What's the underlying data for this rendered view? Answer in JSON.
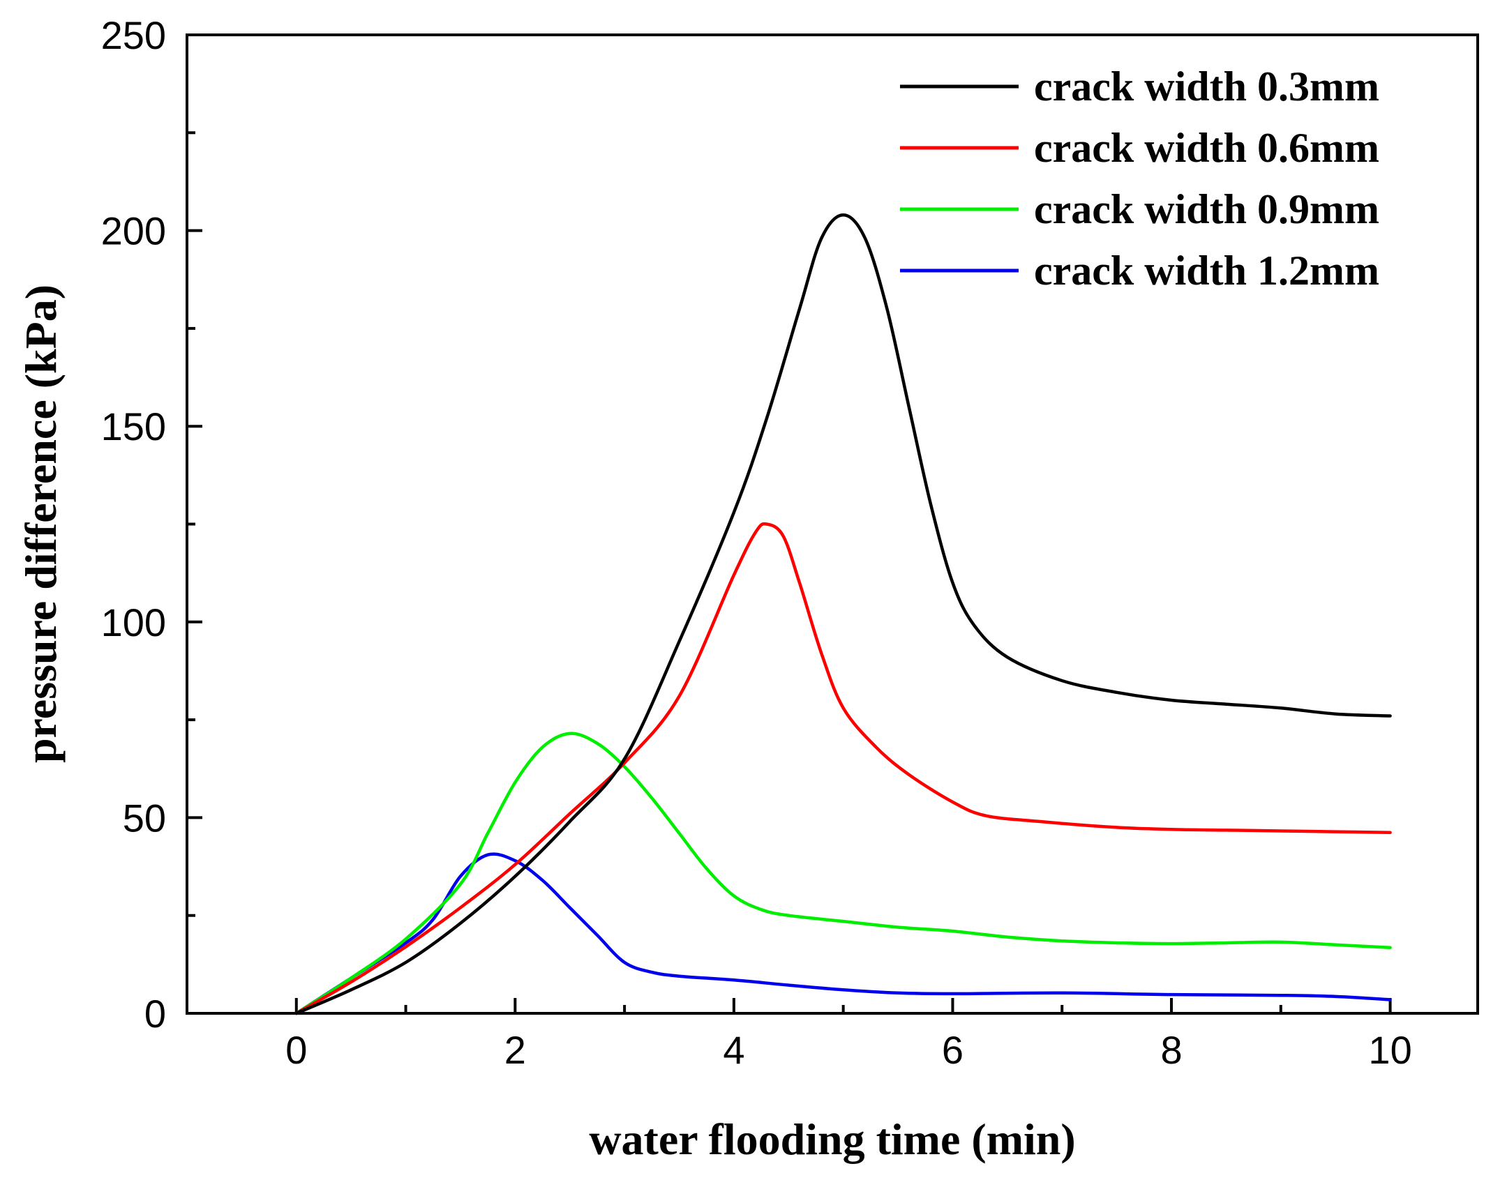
{
  "chart_data": {
    "type": "line",
    "title": "",
    "xlabel": "water flooding time (min)",
    "ylabel": "pressure difference (kPa)",
    "xlim": [
      -1,
      10.8
    ],
    "ylim": [
      0,
      250
    ],
    "xticks": [
      0,
      2,
      4,
      6,
      8,
      10
    ],
    "yticks": [
      0,
      50,
      100,
      150,
      200,
      250
    ],
    "grid": false,
    "legend_position": "top-right",
    "series": [
      {
        "name": "crack width 0.3mm",
        "color": "#000000",
        "x": [
          0,
          0.5,
          1.0,
          1.5,
          2.0,
          2.5,
          3.0,
          3.5,
          4.0,
          4.3,
          4.6,
          4.8,
          5.0,
          5.2,
          5.4,
          5.6,
          5.8,
          6.0,
          6.2,
          6.5,
          7.0,
          7.5,
          8.0,
          8.5,
          9.0,
          9.5,
          10.0
        ],
        "y": [
          0,
          6,
          13,
          23,
          35,
          49,
          65,
          95,
          128,
          152,
          180,
          198,
          204,
          198,
          180,
          155,
          130,
          110,
          99,
          91,
          85,
          82,
          80,
          79,
          78,
          76.5,
          76
        ]
      },
      {
        "name": "crack width 0.6mm",
        "color": "#ff0000",
        "x": [
          0,
          0.5,
          1.0,
          1.5,
          2.0,
          2.5,
          3.0,
          3.5,
          4.0,
          4.2,
          4.3,
          4.45,
          4.6,
          4.8,
          5.0,
          5.3,
          5.6,
          6.0,
          6.3,
          6.8,
          7.5,
          8.0,
          8.5,
          9.0,
          9.5,
          10.0
        ],
        "y": [
          0,
          8,
          17,
          27,
          38,
          51,
          64,
          81,
          112,
          123,
          125,
          122,
          110,
          92,
          78,
          68,
          61,
          54,
          50.5,
          49,
          47.5,
          47,
          46.8,
          46.6,
          46.4,
          46.2
        ]
      },
      {
        "name": "crack width 0.9mm",
        "color": "#00ee00",
        "x": [
          0,
          0.5,
          1.0,
          1.5,
          1.75,
          2.0,
          2.25,
          2.5,
          2.75,
          3.0,
          3.25,
          3.5,
          3.75,
          4.0,
          4.25,
          4.5,
          5.0,
          5.5,
          6.0,
          6.5,
          7.0,
          7.5,
          8.0,
          8.5,
          9.0,
          9.5,
          10.0
        ],
        "y": [
          0,
          9,
          19,
          33,
          46,
          59,
          68,
          71.5,
          69,
          63,
          55,
          46,
          37,
          30,
          26.5,
          25,
          23.5,
          22,
          21,
          19.5,
          18.5,
          18,
          17.8,
          18,
          18.2,
          17.5,
          16.8
        ]
      },
      {
        "name": "crack width 1.2mm",
        "color": "#0000ee",
        "x": [
          0,
          0.5,
          1.0,
          1.25,
          1.5,
          1.75,
          2.0,
          2.25,
          2.5,
          2.75,
          3.0,
          3.25,
          3.5,
          4.0,
          4.5,
          5.0,
          5.5,
          6.0,
          7.0,
          8.0,
          9.0,
          9.5,
          10.0
        ],
        "y": [
          0,
          9,
          18,
          24,
          35,
          40.5,
          39,
          34,
          27,
          20,
          13,
          10.5,
          9.5,
          8.5,
          7.2,
          6,
          5.2,
          5,
          5.2,
          4.8,
          4.6,
          4.3,
          3.5
        ]
      }
    ]
  }
}
